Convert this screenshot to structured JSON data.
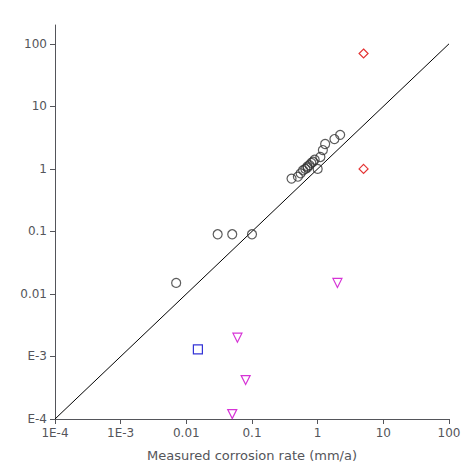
{
  "chart_data": {
    "type": "scatter",
    "xlabel": "Measured corrosion rate (mm/a)",
    "log": true,
    "grid": false,
    "xlim": [
      0.0001,
      100
    ],
    "ylim": [
      0.0001,
      200
    ],
    "xticks": [
      {
        "value": 0.0001,
        "label": "1E-4"
      },
      {
        "value": 0.001,
        "label": "1E-3"
      },
      0.01,
      0.1,
      1,
      10,
      100
    ],
    "yticks": [
      {
        "value": 0.0001,
        "label": "E-4"
      },
      {
        "value": 0.001,
        "label": "E-3"
      },
      0.01,
      0.1,
      1,
      10,
      100
    ],
    "series": [
      {
        "type": "line",
        "color": "#000000",
        "line_style": "solid",
        "x": [
          0.0001,
          100
        ],
        "y": [
          0.0001,
          100
        ]
      },
      {
        "type": "scatter",
        "color": "#333333",
        "marker": "circle",
        "x": [
          0.007,
          0.03,
          0.05,
          0.1,
          0.4,
          0.5,
          0.55,
          0.6,
          0.65,
          0.7,
          0.7,
          0.75,
          0.8,
          0.85,
          0.9,
          1.0,
          1.1,
          1.2,
          1.3,
          1.8,
          2.2
        ],
        "y": [
          0.015,
          0.09,
          0.09,
          0.09,
          0.7,
          0.75,
          0.85,
          0.95,
          1.0,
          1.05,
          1.1,
          1.15,
          1.25,
          1.3,
          1.4,
          1.0,
          1.55,
          2.0,
          2.5,
          3.0,
          3.5
        ]
      },
      {
        "type": "scatter",
        "color": "#dd0000",
        "marker": "diamond",
        "x": [
          5.0,
          5.0
        ],
        "y": [
          70.0,
          1.0
        ]
      },
      {
        "type": "scatter",
        "color": "#0000cc",
        "marker": "square",
        "x": [
          0.015
        ],
        "y": [
          0.0013
        ]
      },
      {
        "type": "scatter",
        "color": "#cc00cc",
        "marker": "triangle_down",
        "x": [
          0.05,
          0.08,
          0.06,
          2.0
        ],
        "y": [
          0.00012,
          0.00042,
          0.002,
          0.015
        ]
      }
    ]
  }
}
